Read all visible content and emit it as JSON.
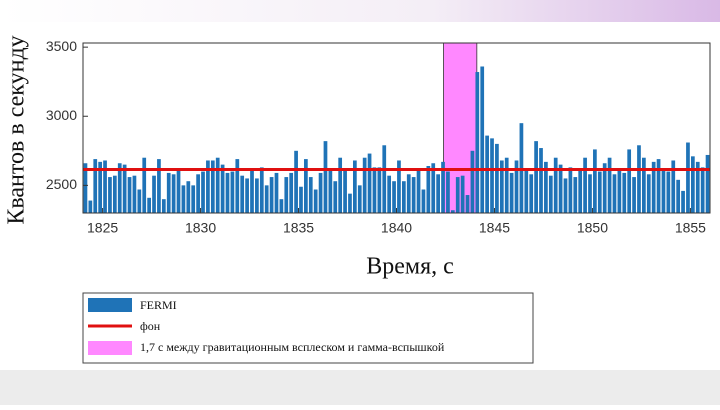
{
  "chart_data": {
    "type": "histogram",
    "y_label": "Квантов в секунду",
    "x_label": "Время, с",
    "bins": [
      1824,
      1824.25,
      1824.5,
      1824.75,
      1825,
      1825.25,
      1825.5,
      1825.75,
      1826,
      1826.25,
      1826.5,
      1826.75,
      1827,
      1827.25,
      1827.5,
      1827.75,
      1828,
      1828.25,
      1828.5,
      1828.75,
      1829,
      1829.25,
      1829.5,
      1829.75,
      1830,
      1830.25,
      1830.5,
      1830.75,
      1831,
      1831.25,
      1831.5,
      1831.75,
      1832,
      1832.25,
      1832.5,
      1832.75,
      1833,
      1833.25,
      1833.5,
      1833.75,
      1834,
      1834.25,
      1834.5,
      1834.75,
      1835,
      1835.25,
      1835.5,
      1835.75,
      1836,
      1836.25,
      1836.5,
      1836.75,
      1837,
      1837.25,
      1837.5,
      1837.75,
      1838,
      1838.25,
      1838.5,
      1838.75,
      1839,
      1839.25,
      1839.5,
      1839.75,
      1840,
      1840.25,
      1840.5,
      1840.75,
      1841,
      1841.25,
      1841.5,
      1841.75,
      1842,
      1842.25,
      1842.5,
      1842.75,
      1843,
      1843.25,
      1843.5,
      1843.75,
      1844,
      1844.25,
      1844.5,
      1844.75,
      1845,
      1845.25,
      1845.5,
      1845.75,
      1846,
      1846.25,
      1846.5,
      1846.75,
      1847,
      1847.25,
      1847.5,
      1847.75,
      1848,
      1848.25,
      1848.5,
      1848.75,
      1849,
      1849.25,
      1849.5,
      1849.75,
      1850,
      1850.25,
      1850.5,
      1850.75,
      1851,
      1851.25,
      1851.5,
      1851.75,
      1852,
      1852.25,
      1852.5,
      1852.75,
      1853,
      1853.25,
      1853.5,
      1853.75,
      1854,
      1854.25,
      1854.5,
      1854.75,
      1855,
      1855.25,
      1855.5,
      1855.75,
      1856
    ],
    "series": [
      {
        "name": "FERMI",
        "color": "#1f73b7",
        "values": [
          2660,
          2390,
          2690,
          2670,
          2680,
          2560,
          2570,
          2660,
          2650,
          2560,
          2570,
          2470,
          2700,
          2410,
          2570,
          2690,
          2400,
          2590,
          2580,
          2610,
          2500,
          2530,
          2500,
          2580,
          2600,
          2680,
          2680,
          2700,
          2650,
          2590,
          2600,
          2690,
          2570,
          2550,
          2610,
          2550,
          2630,
          2500,
          2560,
          2590,
          2400,
          2560,
          2590,
          2750,
          2490,
          2690,
          2560,
          2470,
          2590,
          2820,
          2620,
          2530,
          2700,
          2620,
          2440,
          2680,
          2500,
          2700,
          2730,
          2630,
          2630,
          2790,
          2570,
          2530,
          2680,
          2530,
          2580,
          2560,
          2620,
          2470,
          2640,
          2660,
          2580,
          2670,
          2600,
          2320,
          2560,
          2570,
          2430,
          2750,
          3320,
          3360,
          2860,
          2840,
          2800,
          2680,
          2700,
          2590,
          2680,
          2950,
          2620,
          2580,
          2820,
          2770,
          2670,
          2570,
          2700,
          2650,
          2550,
          2630,
          2560,
          2610,
          2700,
          2580,
          2760,
          2600,
          2660,
          2700,
          2580,
          2620,
          2590,
          2760,
          2560,
          2790,
          2700,
          2580,
          2670,
          2690,
          2620,
          2600,
          2680,
          2540,
          2460,
          2810,
          2710,
          2670,
          2630,
          2720
        ]
      }
    ],
    "reference_line": {
      "name": "фон",
      "color": "#e01010",
      "value": 2615
    },
    "span": {
      "name": "1,7 с между гравитационным всплеском и гамма-вспышкой",
      "color": "#ff88ff",
      "from": 1842.4,
      "to": 1844.1
    },
    "xlim": [
      1824,
      1856
    ],
    "xticks": [
      1825,
      1830,
      1835,
      1840,
      1845,
      1850,
      1855
    ],
    "ylim": [
      2300,
      3530
    ],
    "yticks": [
      2500,
      3000,
      3500
    ]
  }
}
